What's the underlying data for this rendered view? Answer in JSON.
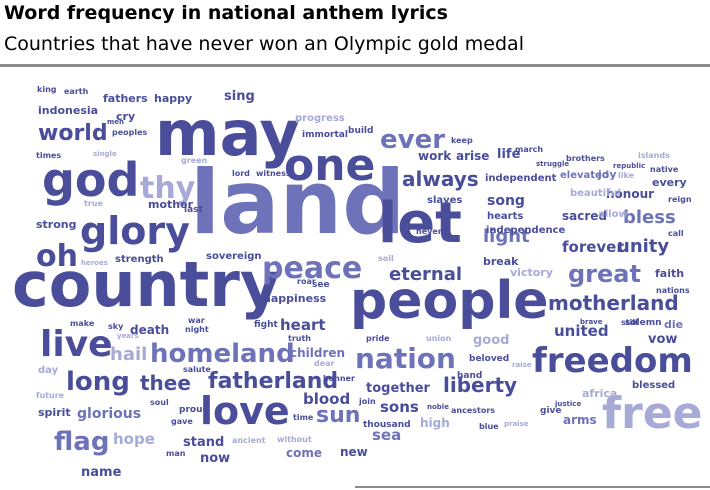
{
  "title": "Word frequency in national anthem lyrics",
  "subtitle": "Countries that have never won an Olympic gold medal",
  "colors": {
    "dark": "#4a4d9a",
    "mid": "#6e72b8",
    "light": "#a7aad6",
    "rule": "#8a8a8a"
  },
  "words": [
    {
      "text": "land",
      "size": 88,
      "tone": "mid"
    },
    {
      "text": "country",
      "size": 62,
      "tone": "dark"
    },
    {
      "text": "may",
      "size": 62,
      "tone": "dark"
    },
    {
      "text": "people",
      "size": 52,
      "tone": "dark"
    },
    {
      "text": "let",
      "size": 56,
      "tone": "dark"
    },
    {
      "text": "god",
      "size": 46,
      "tone": "dark"
    },
    {
      "text": "one",
      "size": 44,
      "tone": "dark"
    },
    {
      "text": "free",
      "size": 44,
      "tone": "light"
    },
    {
      "text": "freedom",
      "size": 34,
      "tone": "dark"
    },
    {
      "text": "glory",
      "size": 38,
      "tone": "dark"
    },
    {
      "text": "love",
      "size": 38,
      "tone": "dark"
    },
    {
      "text": "live",
      "size": 36,
      "tone": "dark"
    },
    {
      "text": "oh",
      "size": 30,
      "tone": "dark"
    },
    {
      "text": "thy",
      "size": 30,
      "tone": "light"
    },
    {
      "text": "peace",
      "size": 30,
      "tone": "mid"
    },
    {
      "text": "nation",
      "size": 28,
      "tone": "mid"
    },
    {
      "text": "homeland",
      "size": 26,
      "tone": "mid"
    },
    {
      "text": "great",
      "size": 24,
      "tone": "mid"
    },
    {
      "text": "ever",
      "size": 26,
      "tone": "mid"
    },
    {
      "text": "world",
      "size": 22,
      "tone": "dark"
    },
    {
      "text": "motherland",
      "size": 20,
      "tone": "dark"
    },
    {
      "text": "fatherland",
      "size": 22,
      "tone": "dark"
    },
    {
      "text": "long",
      "size": 26,
      "tone": "dark"
    },
    {
      "text": "flag",
      "size": 26,
      "tone": "mid"
    },
    {
      "text": "always",
      "size": 20,
      "tone": "dark"
    },
    {
      "text": "eternal",
      "size": 18,
      "tone": "dark"
    },
    {
      "text": "liberty",
      "size": 20,
      "tone": "dark"
    },
    {
      "text": "thee",
      "size": 20,
      "tone": "dark"
    },
    {
      "text": "unity",
      "size": 18,
      "tone": "dark"
    },
    {
      "text": "bless",
      "size": 18,
      "tone": "mid"
    },
    {
      "text": "sun",
      "size": 22,
      "tone": "mid"
    },
    {
      "text": "hail",
      "size": 18,
      "tone": "light"
    },
    {
      "text": "light",
      "size": 18,
      "tone": "mid"
    },
    {
      "text": "song",
      "size": 14,
      "tone": "dark"
    },
    {
      "text": "forever",
      "size": 15,
      "tone": "dark"
    },
    {
      "text": "glorious",
      "size": 14,
      "tone": "mid"
    },
    {
      "text": "heart",
      "size": 15,
      "tone": "dark"
    },
    {
      "text": "blood",
      "size": 15,
      "tone": "dark"
    },
    {
      "text": "sons",
      "size": 15,
      "tone": "dark"
    },
    {
      "text": "united",
      "size": 15,
      "tone": "dark"
    },
    {
      "text": "sea",
      "size": 15,
      "tone": "mid"
    },
    {
      "text": "hope",
      "size": 15,
      "tone": "light"
    },
    {
      "text": "together",
      "size": 13,
      "tone": "dark"
    },
    {
      "text": "death",
      "size": 12,
      "tone": "dark"
    },
    {
      "text": "good",
      "size": 13,
      "tone": "light"
    },
    {
      "text": "children",
      "size": 12,
      "tone": "mid"
    },
    {
      "text": "sacred",
      "size": 12,
      "tone": "dark"
    },
    {
      "text": "honour",
      "size": 12,
      "tone": "dark"
    },
    {
      "text": "indonesia",
      "size": 11,
      "tone": "dark"
    },
    {
      "text": "mother",
      "size": 11,
      "tone": "dark"
    },
    {
      "text": "strong",
      "size": 11,
      "tone": "dark"
    },
    {
      "text": "fathers",
      "size": 11,
      "tone": "dark"
    },
    {
      "text": "happy",
      "size": 11,
      "tone": "dark"
    },
    {
      "text": "sing",
      "size": 13,
      "tone": "dark"
    },
    {
      "text": "cry",
      "size": 11,
      "tone": "dark"
    },
    {
      "text": "arise",
      "size": 12,
      "tone": "dark"
    },
    {
      "text": "life",
      "size": 13,
      "tone": "dark"
    },
    {
      "text": "work",
      "size": 12,
      "tone": "dark"
    },
    {
      "text": "vow",
      "size": 13,
      "tone": "dark"
    },
    {
      "text": "stand",
      "size": 13,
      "tone": "dark"
    },
    {
      "text": "now",
      "size": 13,
      "tone": "dark"
    },
    {
      "text": "name",
      "size": 13,
      "tone": "dark"
    },
    {
      "text": "spirit",
      "size": 11,
      "tone": "dark"
    },
    {
      "text": "new",
      "size": 12,
      "tone": "dark"
    },
    {
      "text": "high",
      "size": 12,
      "tone": "light"
    },
    {
      "text": "come",
      "size": 12,
      "tone": "mid"
    },
    {
      "text": "break",
      "size": 11,
      "tone": "dark"
    },
    {
      "text": "victory",
      "size": 11,
      "tone": "light"
    },
    {
      "text": "faith",
      "size": 11,
      "tone": "dark"
    },
    {
      "text": "die",
      "size": 11,
      "tone": "mid"
    },
    {
      "text": "arms",
      "size": 12,
      "tone": "mid"
    },
    {
      "text": "blessed",
      "size": 10,
      "tone": "dark"
    },
    {
      "text": "africa",
      "size": 11,
      "tone": "light"
    },
    {
      "text": "hearts",
      "size": 10,
      "tone": "dark"
    },
    {
      "text": "independence",
      "size": 10,
      "tone": "dark"
    },
    {
      "text": "independent",
      "size": 10,
      "tone": "dark"
    },
    {
      "text": "elevated",
      "size": 10,
      "tone": "mid"
    },
    {
      "text": "joy",
      "size": 11,
      "tone": "mid"
    },
    {
      "text": "beautiful",
      "size": 10,
      "tone": "light"
    },
    {
      "text": "allow",
      "size": 10,
      "tone": "light"
    },
    {
      "text": "every",
      "size": 11,
      "tone": "dark"
    },
    {
      "text": "slaves",
      "size": 10,
      "tone": "dark"
    },
    {
      "text": "happiness",
      "size": 11,
      "tone": "dark"
    },
    {
      "text": "sovereign",
      "size": 10,
      "tone": "dark"
    },
    {
      "text": "strength",
      "size": 10,
      "tone": "dark"
    },
    {
      "text": "progress",
      "size": 10,
      "tone": "light"
    },
    {
      "text": "immortal",
      "size": 9,
      "tone": "dark"
    },
    {
      "text": "build",
      "size": 9,
      "tone": "dark"
    },
    {
      "text": "lord",
      "size": 8,
      "tone": "dark"
    },
    {
      "text": "witness",
      "size": 8,
      "tone": "dark"
    },
    {
      "text": "last",
      "size": 9,
      "tone": "dark"
    },
    {
      "text": "beloved",
      "size": 9,
      "tone": "dark"
    },
    {
      "text": "hand",
      "size": 9,
      "tone": "dark"
    },
    {
      "text": "thousand",
      "size": 9,
      "tone": "dark"
    },
    {
      "text": "proud",
      "size": 9,
      "tone": "dark"
    },
    {
      "text": "give",
      "size": 9,
      "tone": "dark"
    },
    {
      "text": "brothers",
      "size": 8,
      "tone": "dark"
    },
    {
      "text": "march",
      "size": 8,
      "tone": "dark"
    },
    {
      "text": "struggle",
      "size": 7,
      "tone": "dark"
    },
    {
      "text": "keep",
      "size": 8,
      "tone": "dark"
    },
    {
      "text": "never",
      "size": 8,
      "tone": "dark"
    },
    {
      "text": "soil",
      "size": 8,
      "tone": "light"
    },
    {
      "text": "see",
      "size": 9,
      "tone": "dark"
    },
    {
      "text": "roar",
      "size": 8,
      "tone": "dark"
    },
    {
      "text": "fight",
      "size": 9,
      "tone": "dark"
    },
    {
      "text": "truth",
      "size": 8,
      "tone": "dark"
    },
    {
      "text": "pride",
      "size": 8,
      "tone": "dark"
    },
    {
      "text": "union",
      "size": 8,
      "tone": "light"
    },
    {
      "text": "solemn",
      "size": 9,
      "tone": "dark"
    },
    {
      "text": "still",
      "size": 8,
      "tone": "dark"
    },
    {
      "text": "brave",
      "size": 7,
      "tone": "dark"
    },
    {
      "text": "nations",
      "size": 8,
      "tone": "dark"
    },
    {
      "text": "call",
      "size": 8,
      "tone": "dark"
    },
    {
      "text": "reign",
      "size": 8,
      "tone": "dark"
    },
    {
      "text": "native",
      "size": 8,
      "tone": "dark"
    },
    {
      "text": "like",
      "size": 8,
      "tone": "light"
    },
    {
      "text": "republic",
      "size": 7,
      "tone": "dark"
    },
    {
      "text": "islands",
      "size": 8,
      "tone": "light"
    },
    {
      "text": "king",
      "size": 8,
      "tone": "dark"
    },
    {
      "text": "earth",
      "size": 8,
      "tone": "dark"
    },
    {
      "text": "men",
      "size": 7,
      "tone": "dark"
    },
    {
      "text": "peoples",
      "size": 8,
      "tone": "dark"
    },
    {
      "text": "times",
      "size": 8,
      "tone": "dark"
    },
    {
      "text": "single",
      "size": 7,
      "tone": "light"
    },
    {
      "text": "green",
      "size": 8,
      "tone": "light"
    },
    {
      "text": "true",
      "size": 8,
      "tone": "light"
    },
    {
      "text": "heroes",
      "size": 7,
      "tone": "light"
    },
    {
      "text": "time",
      "size": 8,
      "tone": "dark"
    },
    {
      "text": "make",
      "size": 8,
      "tone": "dark"
    },
    {
      "text": "years",
      "size": 7,
      "tone": "light"
    },
    {
      "text": "sky",
      "size": 8,
      "tone": "dark"
    },
    {
      "text": "war",
      "size": 8,
      "tone": "dark"
    },
    {
      "text": "night",
      "size": 8,
      "tone": "dark"
    },
    {
      "text": "day",
      "size": 10,
      "tone": "light"
    },
    {
      "text": "salute",
      "size": 8,
      "tone": "dark"
    },
    {
      "text": "future",
      "size": 8,
      "tone": "light"
    },
    {
      "text": "soul",
      "size": 8,
      "tone": "dark"
    },
    {
      "text": "gave",
      "size": 8,
      "tone": "dark"
    },
    {
      "text": "man",
      "size": 8,
      "tone": "dark"
    },
    {
      "text": "ancient",
      "size": 8,
      "tone": "light"
    },
    {
      "text": "without",
      "size": 8,
      "tone": "light"
    },
    {
      "text": "banner",
      "size": 8,
      "tone": "dark"
    },
    {
      "text": "dear",
      "size": 8,
      "tone": "light"
    },
    {
      "text": "join",
      "size": 8,
      "tone": "dark"
    },
    {
      "text": "noble",
      "size": 7,
      "tone": "dark"
    },
    {
      "text": "ancestors",
      "size": 8,
      "tone": "dark"
    },
    {
      "text": "blue",
      "size": 8,
      "tone": "dark"
    },
    {
      "text": "praise",
      "size": 7,
      "tone": "light"
    },
    {
      "text": "justice",
      "size": 7,
      "tone": "dark"
    },
    {
      "text": "raise",
      "size": 7,
      "tone": "light"
    }
  ]
}
